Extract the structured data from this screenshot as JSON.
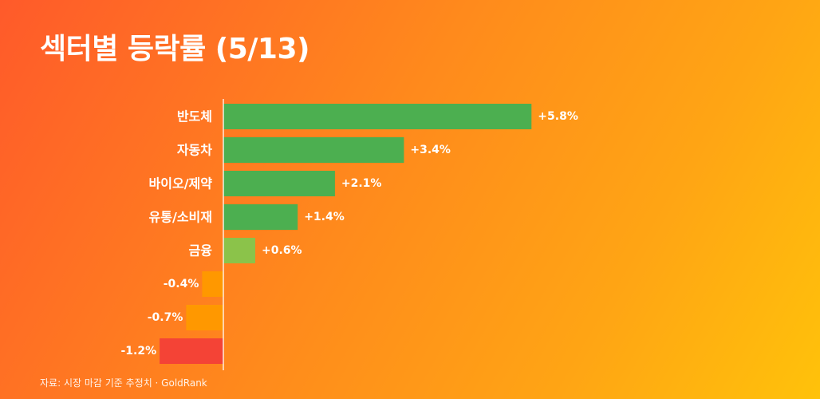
{
  "header": {
    "title": "섹터별 등락률 (5/13)"
  },
  "footer": {
    "source": "자료: 시장 마감 기준 추정치 · GoldRank"
  },
  "colors": {
    "positive_strong": "#4CAF50",
    "positive_weak": "#8BC34A",
    "negative_weak": "#FF9800",
    "negative_strong": "#F44336",
    "axis": "#FFFFFF"
  },
  "chart_data": {
    "type": "bar",
    "orientation": "horizontal",
    "title": "섹터별 등락률 (5/13)",
    "categories": [
      "반도체",
      "자동차",
      "바이오/제약",
      "유통/소비재",
      "금융",
      "",
      "",
      ""
    ],
    "values": [
      5.8,
      3.4,
      2.1,
      1.4,
      0.6,
      -0.4,
      -0.7,
      -1.2
    ],
    "value_labels": [
      "+5.8%",
      "+3.4%",
      "+2.1%",
      "+1.4%",
      "+0.6%",
      "-0.4%",
      "-0.7%",
      "-1.2%"
    ],
    "bar_colors": [
      "#4CAF50",
      "#4CAF50",
      "#4CAF50",
      "#4CAF50",
      "#8BC34A",
      "#FF9800",
      "#FF9800",
      "#F44336"
    ],
    "unit": "%",
    "xlim": [
      -1.2,
      5.8
    ],
    "grid": false,
    "legend": "none"
  }
}
